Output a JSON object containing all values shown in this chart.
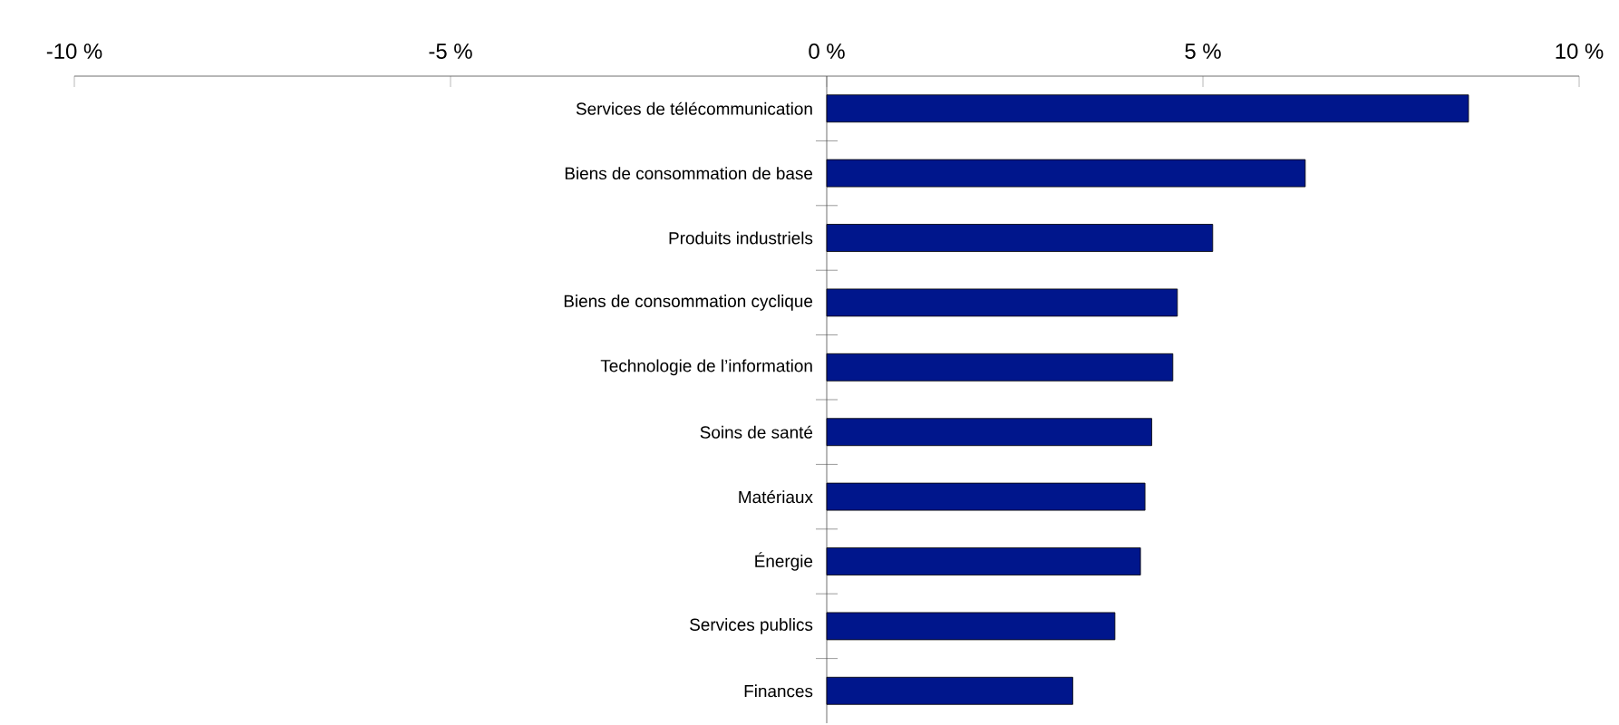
{
  "chart_data": {
    "type": "bar",
    "orientation": "horizontal",
    "categories": [
      "Services de télécommunication",
      "Biens de consommation de base",
      "Produits industriels",
      "Biens de consommation cyclique",
      "Technologie de l’information",
      "Soins de santé",
      "Matériaux",
      "Énergie",
      "Services publics",
      "Finances"
    ],
    "values": [
      8.53,
      6.36,
      5.13,
      4.66,
      4.6,
      4.32,
      4.23,
      4.17,
      3.83,
      3.27
    ],
    "color": "#00168c",
    "xlim": [
      -10,
      10
    ],
    "xticks": [
      {
        "value": -10,
        "label": "-10 %"
      },
      {
        "value": -5,
        "label": "-5 %"
      },
      {
        "value": 0,
        "label": "0 %"
      },
      {
        "value": 5,
        "label": "5 %"
      },
      {
        "value": 10,
        "label": "10 %"
      }
    ],
    "grid": false
  }
}
